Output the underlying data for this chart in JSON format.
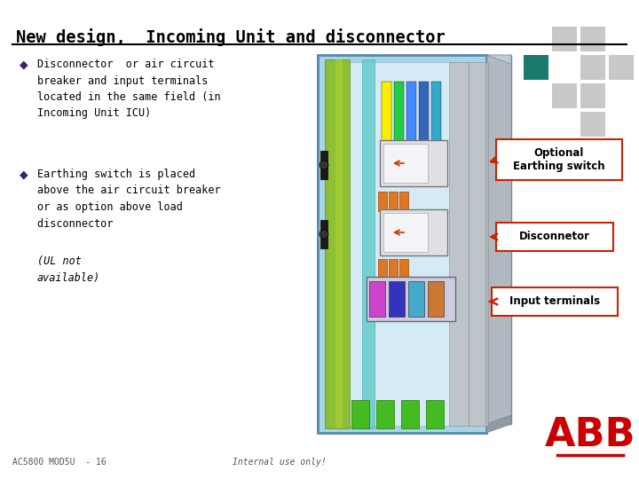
{
  "title": "New design,  Incoming Unit and disconnector",
  "title_fontsize": 13.5,
  "bg_color": "#ffffff",
  "title_color": "#000000",
  "teal_square_color": "#1a7a6e",
  "gray_square_color": "#c8c8c8",
  "bullet_color": "#3b1f6e",
  "bullet1_text": "Disconnector  or air circuit\nbreaker and input terminals\nlocated in the same field (in\nIncoming Unit ICU)",
  "bullet2_normal": "Earthing switch is placed\nabove the air circuit breaker\nor as option above load\ndisconnector  ",
  "bullet2_italic": "(UL not\navailable)",
  "label1_text": "Optional\nEarthing switch",
  "label2_text": "Disconnetor",
  "label3_text": "Input terminals",
  "footer_left": "AC5800 MOD5U  - 16",
  "footer_center": "Internal use only!",
  "abb_red": "#cc0000",
  "arrow_color": "#cc2200",
  "label_border_color": "#cc2200"
}
